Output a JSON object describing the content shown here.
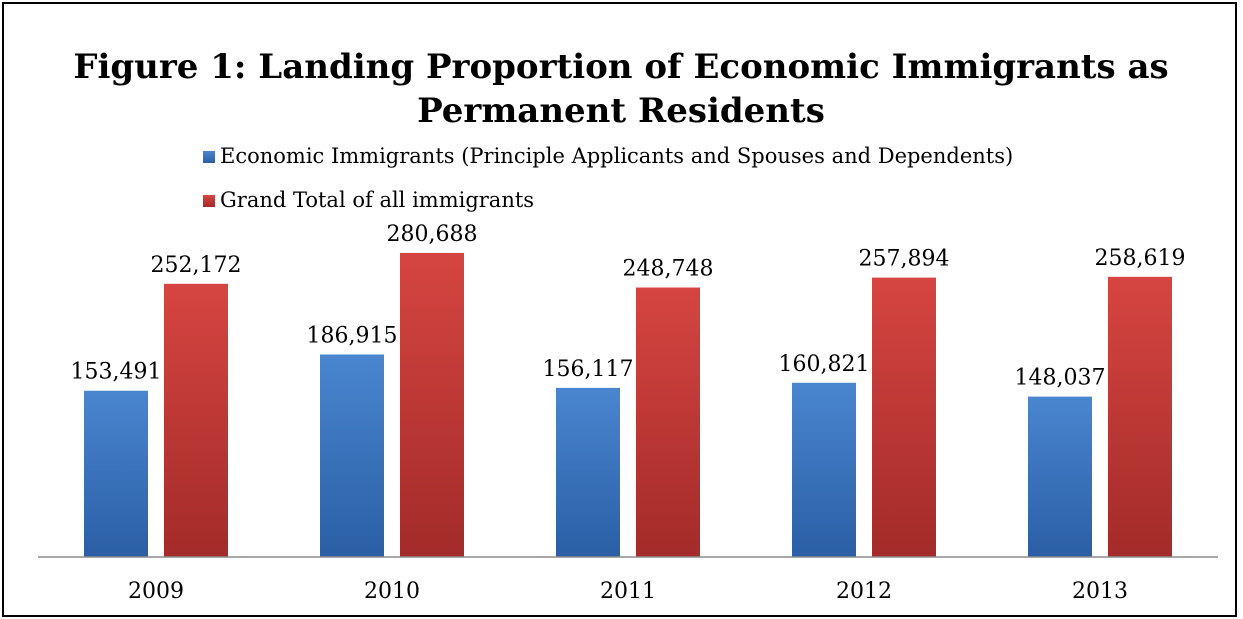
{
  "chart_data": {
    "type": "bar",
    "title_line1": "Figure 1: Landing Proportion of Economic Immigrants as",
    "title_line2": "Permanent Residents",
    "categories": [
      "2009",
      "2010",
      "2011",
      "2012",
      "2013"
    ],
    "series": [
      {
        "name": "Economic Immigrants (Principle Applicants and Spouses and Dependents)",
        "values": [
          153491,
          186915,
          156117,
          160821,
          148037
        ],
        "labels": [
          "153,491",
          "186,915",
          "156,117",
          "160,821",
          "148,037"
        ],
        "color_top": "#4a86d0",
        "color_bottom": "#2a5fa5"
      },
      {
        "name": "Grand Total of all immigrants",
        "values": [
          252172,
          280688,
          248748,
          257894,
          258619
        ],
        "labels": [
          "252,172",
          "280,688",
          "248,748",
          "257,894",
          "258,619"
        ],
        "color_top": "#d64541",
        "color_bottom": "#a32b29"
      }
    ],
    "ylim": [
      0,
      300000
    ],
    "grid": false,
    "legend_position": "top-center"
  }
}
